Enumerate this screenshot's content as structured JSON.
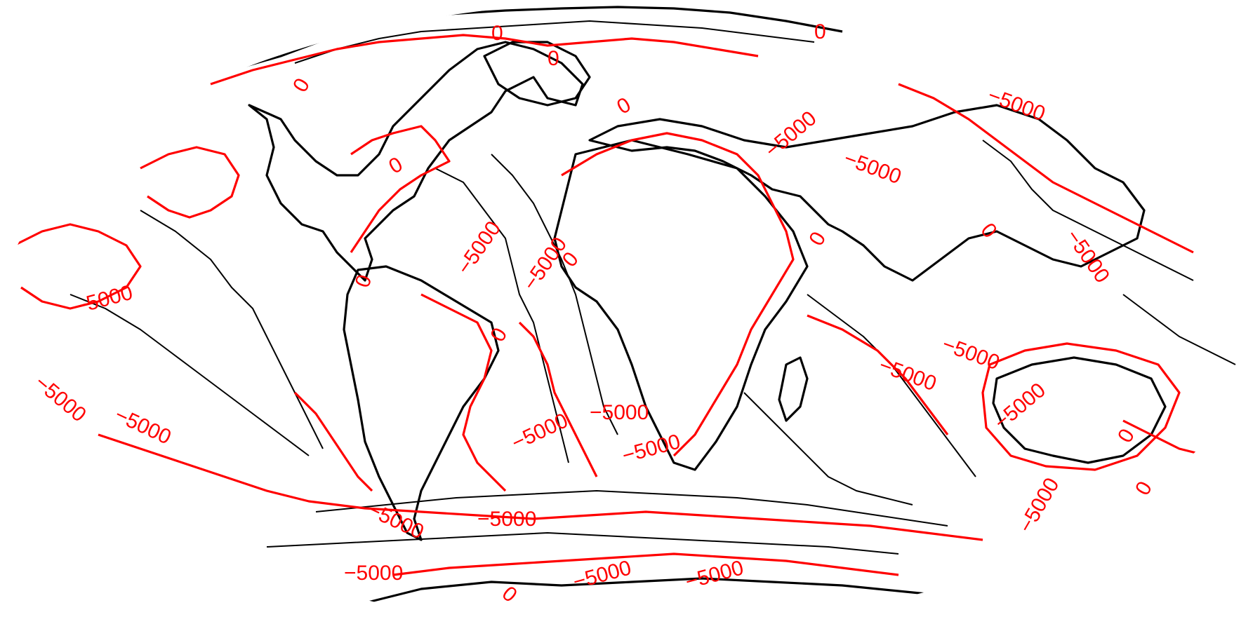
{
  "map": {
    "projection": "Mollweide",
    "contour_colors": {
      "labelled_levels": "#ff0000",
      "other_levels": "#000000"
    },
    "labelled_levels": [
      0,
      -5000
    ],
    "contour_labels": [
      "0",
      "0",
      "0",
      "0",
      "0",
      "0",
      "0",
      "0",
      "0",
      "0",
      "0",
      "0",
      "0",
      "0",
      "−5000",
      "−5000",
      "−5000",
      "−5000",
      "−5000",
      "−5000",
      "−5000",
      "−5000",
      "−5000",
      "−5000",
      "−5000",
      "−5000",
      "−5000",
      "−5000",
      "−5000",
      "−5000",
      "−5000",
      "−5000",
      "−5000",
      "−5000",
      "−5000"
    ]
  }
}
